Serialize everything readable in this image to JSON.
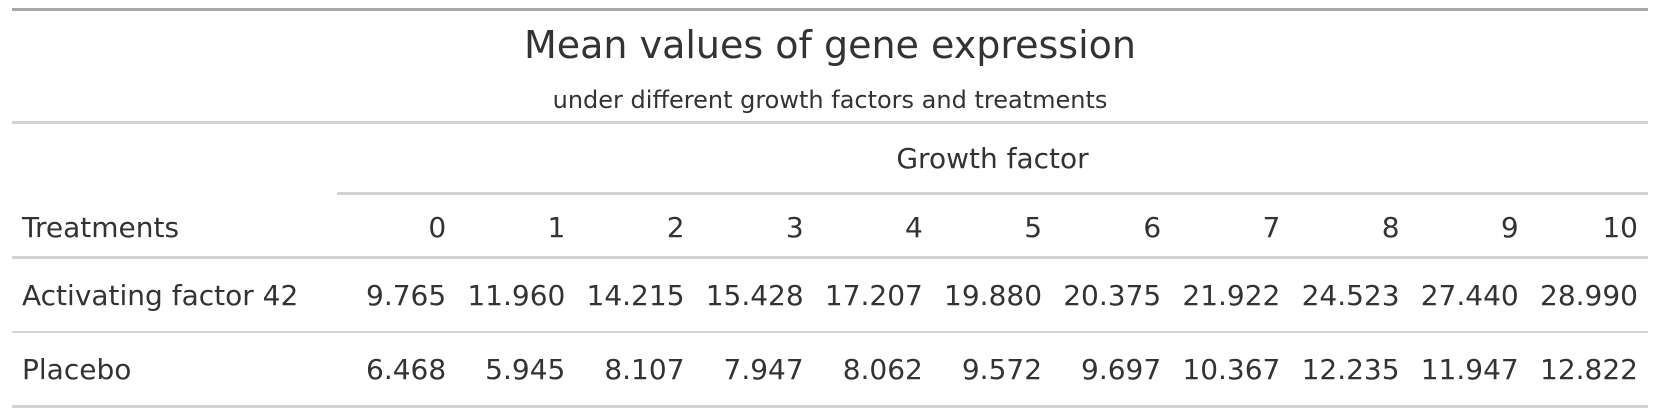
{
  "table": {
    "title": "Mean values of gene expression",
    "subtitle": "under different growth factors and treatments",
    "spanner_label": "Growth factor",
    "stub_header": "Treatments",
    "columns": [
      "0",
      "1",
      "2",
      "3",
      "4",
      "5",
      "6",
      "7",
      "8",
      "9",
      "10"
    ],
    "rows": [
      {
        "label": "Activating factor 42",
        "values": [
          "9.765",
          "11.960",
          "14.215",
          "15.428",
          "17.207",
          "19.880",
          "20.375",
          "21.922",
          "24.523",
          "27.440",
          "28.990"
        ]
      },
      {
        "label": "Placebo",
        "values": [
          "6.468",
          "5.945",
          "8.107",
          "7.947",
          "8.062",
          "9.572",
          "9.697",
          "10.367",
          "12.235",
          "11.947",
          "12.822"
        ]
      }
    ]
  }
}
